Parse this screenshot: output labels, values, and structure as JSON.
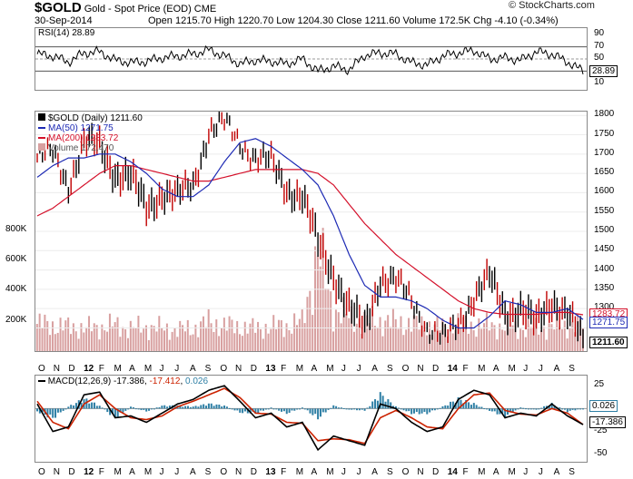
{
  "header": {
    "symbol": "$GOLD",
    "name": "Gold - Spot Price (EOD)",
    "exchange": "CME",
    "date": "30-Sep-2014",
    "quote": "Open 1215.70  High 1220.70  Low 1204.30  Close 1211.60  Volume 172.5K  Chg -4.10 (-0.34%)",
    "credit": "© StockCharts.com"
  },
  "colors": {
    "ma50": "#1d2ab4",
    "ma200": "#d4102a",
    "price_up": "#000000",
    "price_down": "#c00000",
    "volume": "#d8a0a0",
    "macd_line": "#000000",
    "signal_line": "#cc2200",
    "histogram": "#2e7fa5"
  },
  "rsi": {
    "label": "RSI(14) 28.89",
    "ticks": [
      "90",
      "70",
      "50",
      "30",
      "10"
    ],
    "current": "28.89"
  },
  "price": {
    "legend": [
      "$GOLD (Daily) 1211.60",
      "MA(50) 1271.75",
      "MA(200) 1283.72",
      "Volume 172,470"
    ],
    "ticks": [
      "1800",
      "1750",
      "1700",
      "1650",
      "1600",
      "1550",
      "1500",
      "1450",
      "1400",
      "1350",
      "1300",
      "1250"
    ],
    "volume_ticks": [
      "800K",
      "600K",
      "400K",
      "200K"
    ],
    "tags": {
      "ma200": "1283.72",
      "ma50": "1271.75",
      "close": "1211.60"
    }
  },
  "macd": {
    "label": "MACD(12,26,9)",
    "value": "-17.386",
    "signal_value": "-17.412",
    "hist_value": "0.026",
    "ticks": [
      "25",
      "0",
      "-25",
      "-50"
    ],
    "tags": {
      "hist": "0.026",
      "macd": "-17.386"
    }
  },
  "x_axis": {
    "labels": [
      "O",
      "N",
      "D",
      "12",
      "F",
      "M",
      "A",
      "M",
      "J",
      "J",
      "A",
      "S",
      "O",
      "N",
      "D",
      "13",
      "F",
      "M",
      "A",
      "M",
      "J",
      "J",
      "A",
      "S",
      "O",
      "N",
      "D",
      "14",
      "F",
      "M",
      "A",
      "M",
      "J",
      "J",
      "A",
      "S"
    ]
  },
  "chart_data": [
    {
      "type": "line",
      "title": "RSI(14) 28.89",
      "ylim": [
        0,
        100
      ],
      "x": [
        "O",
        "N",
        "D",
        "12",
        "F",
        "M",
        "A",
        "M",
        "J",
        "J",
        "A",
        "S",
        "O",
        "N",
        "D",
        "13",
        "F",
        "M",
        "A",
        "M",
        "J",
        "J",
        "A",
        "S",
        "O",
        "N",
        "D",
        "14",
        "F",
        "M",
        "A",
        "M",
        "J",
        "J",
        "A",
        "S"
      ],
      "series": [
        {
          "name": "RSI(14)",
          "values": [
            58,
            55,
            45,
            60,
            62,
            48,
            44,
            46,
            52,
            55,
            58,
            65,
            55,
            42,
            48,
            46,
            42,
            50,
            30,
            38,
            32,
            56,
            60,
            58,
            44,
            40,
            55,
            60,
            64,
            50,
            52,
            48,
            62,
            58,
            45,
            30
          ]
        }
      ]
    },
    {
      "type": "line",
      "title": "$GOLD (Daily) 1211.60",
      "ylim": [
        1190,
        1810
      ],
      "x": [
        "O",
        "N",
        "D",
        "12",
        "F",
        "M",
        "A",
        "M",
        "J",
        "J",
        "A",
        "S",
        "O",
        "N",
        "D",
        "13",
        "F",
        "M",
        "A",
        "M",
        "J",
        "J",
        "A",
        "S",
        "O",
        "N",
        "D",
        "14",
        "F",
        "M",
        "A",
        "M",
        "J",
        "J",
        "A",
        "S"
      ],
      "series": [
        {
          "name": "$GOLD",
          "values": [
            1690,
            1700,
            1620,
            1730,
            1720,
            1650,
            1640,
            1560,
            1600,
            1590,
            1620,
            1760,
            1780,
            1730,
            1690,
            1680,
            1610,
            1590,
            1470,
            1390,
            1300,
            1250,
            1380,
            1370,
            1320,
            1250,
            1220,
            1260,
            1330,
            1380,
            1290,
            1300,
            1260,
            1320,
            1290,
            1212
          ]
        },
        {
          "name": "MA(50)",
          "values": [
            1640,
            1670,
            1690,
            1690,
            1700,
            1700,
            1680,
            1650,
            1610,
            1590,
            1590,
            1620,
            1680,
            1730,
            1740,
            1720,
            1690,
            1660,
            1620,
            1540,
            1440,
            1360,
            1330,
            1330,
            1320,
            1300,
            1270,
            1250,
            1250,
            1280,
            1320,
            1310,
            1290,
            1290,
            1300,
            1272
          ]
        },
        {
          "name": "MA(200)",
          "values": [
            1540,
            1560,
            1590,
            1620,
            1650,
            1670,
            1670,
            1660,
            1650,
            1640,
            1630,
            1630,
            1640,
            1650,
            1660,
            1660,
            1660,
            1660,
            1650,
            1620,
            1570,
            1520,
            1480,
            1440,
            1410,
            1380,
            1350,
            1320,
            1300,
            1290,
            1285,
            1285,
            1285,
            1290,
            1290,
            1284
          ]
        }
      ]
    },
    {
      "type": "bar",
      "title": "Volume 172,470",
      "ylim": [
        0,
        900000
      ],
      "x": [
        "O",
        "N",
        "D",
        "12",
        "F",
        "M",
        "A",
        "M",
        "J",
        "J",
        "A",
        "S",
        "O",
        "N",
        "D",
        "13",
        "F",
        "M",
        "A",
        "M",
        "J",
        "J",
        "A",
        "S",
        "O",
        "N",
        "D",
        "14",
        "F",
        "M",
        "A",
        "M",
        "J",
        "J",
        "A",
        "S"
      ],
      "series": [
        {
          "name": "Volume",
          "values": [
            180000,
            170000,
            160000,
            150000,
            160000,
            170000,
            150000,
            160000,
            150000,
            140000,
            150000,
            190000,
            170000,
            160000,
            150000,
            160000,
            170000,
            190000,
            650000,
            280000,
            220000,
            200000,
            200000,
            190000,
            180000,
            170000,
            160000,
            180000,
            170000,
            170000,
            160000,
            150000,
            150000,
            160000,
            170000,
            172470
          ]
        }
      ]
    },
    {
      "type": "line",
      "title": "MACD(12,26,9) -17.386, -17.412, 0.026",
      "ylim": [
        -55,
        35
      ],
      "x": [
        "O",
        "N",
        "D",
        "12",
        "F",
        "M",
        "A",
        "M",
        "J",
        "J",
        "A",
        "S",
        "O",
        "N",
        "D",
        "13",
        "F",
        "M",
        "A",
        "M",
        "J",
        "J",
        "A",
        "S",
        "O",
        "N",
        "D",
        "14",
        "F",
        "M",
        "A",
        "M",
        "J",
        "J",
        "A",
        "S"
      ],
      "series": [
        {
          "name": "MACD",
          "values": [
            5,
            -25,
            -20,
            15,
            18,
            -10,
            -8,
            -15,
            -5,
            5,
            10,
            20,
            25,
            8,
            -10,
            -5,
            -20,
            -15,
            -45,
            -30,
            -35,
            -40,
            5,
            0,
            -15,
            -25,
            -20,
            10,
            20,
            15,
            -10,
            -5,
            -8,
            5,
            -8,
            -17.386
          ]
        },
        {
          "name": "Signal",
          "values": [
            8,
            -15,
            -22,
            5,
            15,
            0,
            -10,
            -12,
            -8,
            2,
            8,
            15,
            22,
            12,
            -5,
            -6,
            -15,
            -16,
            -35,
            -33,
            -34,
            -38,
            -10,
            -2,
            -10,
            -20,
            -22,
            0,
            15,
            17,
            -2,
            -6,
            -7,
            0,
            -5,
            -17.412
          ]
        },
        {
          "name": "Histogram",
          "values": [
            -3,
            -10,
            2,
            10,
            3,
            -10,
            2,
            -3,
            3,
            3,
            2,
            5,
            3,
            -4,
            -5,
            1,
            -5,
            1,
            -10,
            3,
            -1,
            -2,
            15,
            2,
            -5,
            -5,
            2,
            10,
            5,
            -2,
            -8,
            1,
            -1,
            5,
            -3,
            0.026
          ]
        }
      ]
    }
  ]
}
